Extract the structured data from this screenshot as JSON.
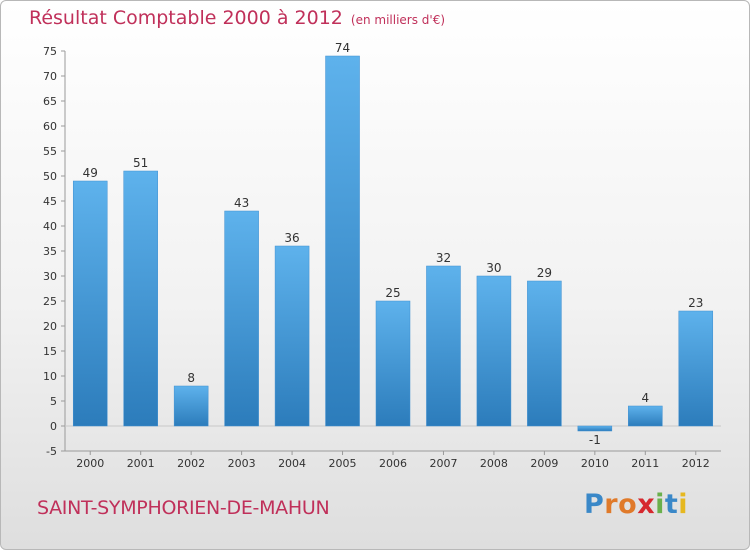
{
  "header": {
    "title": "Résultat Comptable 2000 à 2012",
    "subtitle": "(en milliers d'€)"
  },
  "footer": {
    "place": "SAINT-SYMPHORIEN-DE-MAHUN",
    "logo": "Proxiti"
  },
  "colors": {
    "title": "#c0305a",
    "bar_light": "#5eb2ec",
    "bar_dark": "#2c7cbb",
    "logo_letters": [
      "#3a88c8",
      "#e07a2a",
      "#e07a2a",
      "#d6282e",
      "#6ab04c",
      "#3a88c8",
      "#e6b820"
    ]
  },
  "chart_data": {
    "type": "bar",
    "title": "Résultat Comptable 2000 à 2012",
    "subtitle": "(en milliers d'€)",
    "categories": [
      "2000",
      "2001",
      "2002",
      "2003",
      "2004",
      "2005",
      "2006",
      "2007",
      "2008",
      "2009",
      "2010",
      "2011",
      "2012"
    ],
    "values": [
      49,
      51,
      8,
      43,
      36,
      74,
      25,
      32,
      30,
      29,
      -1,
      4,
      23
    ],
    "data_labels": [
      "49",
      "51",
      "8",
      "43",
      "36",
      "74",
      "25",
      "32",
      "30",
      "29",
      "-1",
      "4",
      "23"
    ],
    "ylim": [
      -5,
      75
    ],
    "yticks": [
      -5,
      0,
      5,
      10,
      15,
      20,
      25,
      30,
      35,
      40,
      45,
      50,
      55,
      60,
      65,
      70,
      75
    ],
    "ytick_labels": [
      "-5",
      "0",
      "5",
      "10",
      "15",
      "20",
      "25",
      "30",
      "35",
      "40",
      "45",
      "50",
      "55",
      "60",
      "65",
      "70",
      "75"
    ],
    "grid": false,
    "xlabel": "",
    "ylabel": ""
  }
}
